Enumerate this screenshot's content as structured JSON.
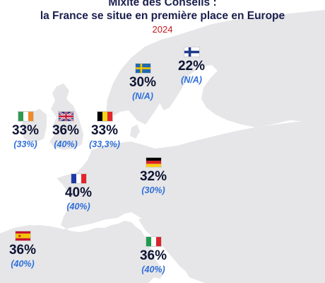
{
  "title_line1": "Mixité des Conseils :",
  "title_line2": "la France se situe en première place en Europe",
  "year": "2024",
  "colors": {
    "title": "#1a1f4d",
    "year": "#c0191e",
    "current_value": "#0e1433",
    "previous_value": "#2f6fd8",
    "land": "#e6e6e8",
    "sea": "#ffffff"
  },
  "countries": [
    {
      "id": "finland",
      "flag": "finland-flag",
      "current": "22%",
      "previous": "(N/A)"
    },
    {
      "id": "sweden",
      "flag": "sweden-flag",
      "current": "30%",
      "previous": "(N/A)"
    },
    {
      "id": "ireland",
      "flag": "ireland-flag",
      "current": "33%",
      "previous": "(33%)"
    },
    {
      "id": "united-kingdom",
      "flag": "uk-flag",
      "current": "36%",
      "previous": "(40%)"
    },
    {
      "id": "belgium",
      "flag": "belgium-flag",
      "current": "33%",
      "previous": "(33,3%)"
    },
    {
      "id": "france",
      "flag": "france-flag",
      "current": "40%",
      "previous": "(40%)"
    },
    {
      "id": "germany",
      "flag": "germany-flag",
      "current": "32%",
      "previous": "(30%)"
    },
    {
      "id": "spain",
      "flag": "spain-flag",
      "current": "36%",
      "previous": "(40%)"
    },
    {
      "id": "italy",
      "flag": "italy-flag",
      "current": "36%",
      "previous": "(40%)"
    }
  ]
}
